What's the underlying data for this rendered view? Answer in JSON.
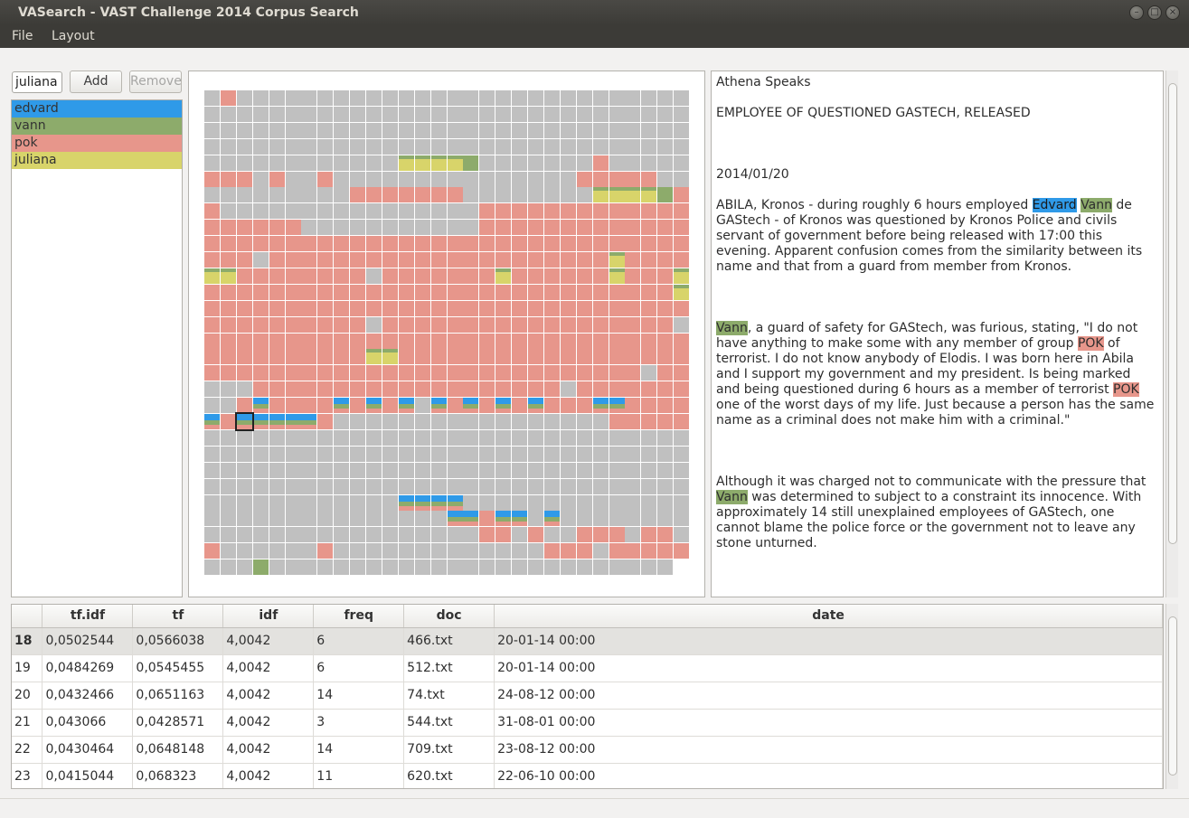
{
  "window": {
    "title": "VASearch - VAST Challenge 2014 Corpus Search"
  },
  "menubar": {
    "file": "File",
    "layout": "Layout"
  },
  "search": {
    "value": "juliana",
    "add_label": "Add",
    "remove_label": "Remove"
  },
  "terms": [
    {
      "label": "edvard",
      "color": "#2f9ae8"
    },
    {
      "label": "vann",
      "color": "#8dab6b"
    },
    {
      "label": "pok",
      "color": "#e7968b"
    },
    {
      "label": "juliana",
      "color": "#d8d46a"
    }
  ],
  "grid": {
    "columns": 30,
    "legend": {
      "0": "#c0c0c0",
      "E": "#2f9ae8",
      "V": "#8dab6b",
      "P": "#e7968b",
      "J": "#d8d46a"
    },
    "selected_cell": [
      20,
      2
    ],
    "rows": [
      "0P0000000000000000000000000000",
      "000000000000000000000000000000",
      "000000000000000000000000000000",
      "000000000000000000000000000000",
      "000000000000JJJJV0000000P00000",
      "PPP0P00P000000000000000PPPPP00",
      "000000000PPPPPPP00000000JJJJVP",
      "P0000000000000000PPPPPPPPPPPPP",
      "PPPPPP00000000000PPPPPPPPPPPPP",
      "PPPPPPPPPPPPPPPPPPPPPPPPPPPPPP",
      "PPP0PPPPPPPPPPPPPPPPPPPPPJPPPP",
      "JJPPPPPPPP0PPPPPPPJPPPPPPJPPPJ",
      "PPPPPPPPPPPPPPPPPPPPPPPPPPPPPJ",
      "PPPPPPPPPPPPPPPPPPPPPPPPPPPPPP",
      "PPPPPPPPPP0PPPPPPPPPPPPPPPPPP0",
      "PPPPPPPPPPPPPPPPPPPPPPPPPPPPPP",
      "PPPPPPPPPPJJPPPPPPPPPPPPPPPPPP",
      "PPPPPPPPPPPPPPPPPPPPPPPPPPP0PP",
      "000PPPPPPPPPPPPPPPPPPP0PPPPPPP",
      "00PEPPPPEPEPE0EPEPEPEPPPEEPPPP",
      "EPEEEEEP00000000000000000PPPPP",
      "000000000000000000000000000000",
      "000000000000000000000000000000",
      "000000000000000000000000000000",
      "000000000000000000000000000000",
      "000000000000EEEE00000000000000",
      "000000000000000EEPEE0E00000000",
      "00000000000000000PP0P00PPP0PP0",
      "P000000P0000000000000PPP0PPPPP",
      "000V0000000000000000000000000"
    ]
  },
  "document": {
    "source": "Athena Speaks",
    "headline": "EMPLOYEE OF QUESTIONED GASTECH, RELEASED",
    "date": "2014/01/20",
    "p1": {
      "a": "ABILA, Kronos - during roughly 6 hours employed ",
      "edvard": "Edvard",
      "b": " ",
      "vann": "Vann",
      "c": " de GAStech - of Kronos was questioned by Kronos Police and civils servant of government before being released with 17:00 this evening. Apparent confusion comes from the similarity between its name and that from a guard from member from Kronos."
    },
    "p2": {
      "vann": "Vann",
      "a": ", a guard of safety for GAStech, was furious, stating, \"I do not have anything to make some with any member of group ",
      "pok1": "POK",
      "b": " of terrorist. I do not know anybody of Elodis. I was born here in Abila and I support my government and my president. Is being marked and being questioned during 6 hours as a member of terrorist ",
      "pok2": "POK",
      "c": " one of the worst days of my life. Just because a person has the same name as a criminal does not make him with a criminal.\""
    },
    "p3": {
      "a": "Although it was charged not to communicate with the pressure that ",
      "vann": "Vann",
      "b": " was determined to subject to a constraint its innocence. With approximately 14 still unexplained employees of GAStech, one cannot blame the police force or the government not to leave any stone unturned."
    }
  },
  "table": {
    "columns": [
      "tf.idf",
      "tf",
      "idf",
      "freq",
      "doc",
      "date"
    ],
    "rows": [
      {
        "n": "18",
        "tfidf": "0,0502544",
        "tf": "0,0566038",
        "idf": "4,0042",
        "freq": "6",
        "doc": "466.txt",
        "date": "20-01-14 00:00"
      },
      {
        "n": "19",
        "tfidf": "0,0484269",
        "tf": "0,0545455",
        "idf": "4,0042",
        "freq": "6",
        "doc": "512.txt",
        "date": "20-01-14 00:00"
      },
      {
        "n": "20",
        "tfidf": "0,0432466",
        "tf": "0,0651163",
        "idf": "4,0042",
        "freq": "14",
        "doc": "74.txt",
        "date": "24-08-12 00:00"
      },
      {
        "n": "21",
        "tfidf": "0,043066",
        "tf": "0,0428571",
        "idf": "4,0042",
        "freq": "3",
        "doc": "544.txt",
        "date": "31-08-01 00:00"
      },
      {
        "n": "22",
        "tfidf": "0,0430464",
        "tf": "0,0648148",
        "idf": "4,0042",
        "freq": "14",
        "doc": "709.txt",
        "date": "23-08-12 00:00"
      },
      {
        "n": "23",
        "tfidf": "0,0415044",
        "tf": "0,068323",
        "idf": "4,0042",
        "freq": "11",
        "doc": "620.txt",
        "date": "22-06-10 00:00"
      }
    ]
  }
}
